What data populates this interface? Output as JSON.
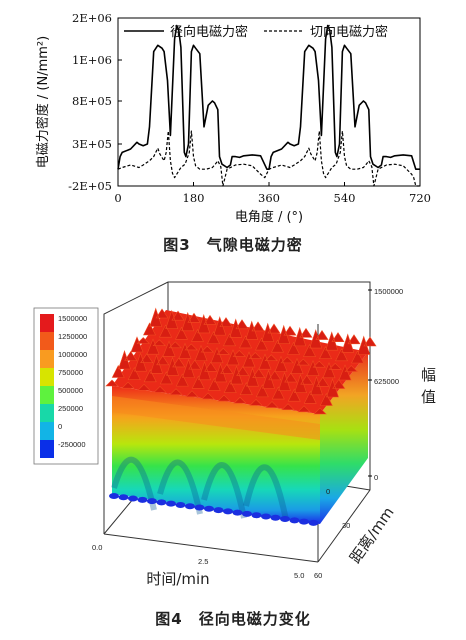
{
  "fig3": {
    "caption": "图3　气隙电磁力密",
    "chart_data": {
      "type": "line",
      "title": "",
      "xlabel": "电角度 / (°)",
      "ylabel": "电磁力密度 / (N/mm²)",
      "xlim": [
        0,
        720
      ],
      "ylim": [
        -200000,
        2000000
      ],
      "x_ticks": [
        "0",
        "180",
        "360",
        "540",
        "720"
      ],
      "y_ticks": [
        "-2E+05",
        "3E+05",
        "8E+05",
        "1E+06",
        "2E+06"
      ],
      "legend_position": "top",
      "grid": false,
      "series": [
        {
          "name": "径向电磁力密",
          "style": "solid",
          "x": [
            0,
            5,
            10,
            30,
            45,
            50,
            60,
            70,
            75,
            85,
            95,
            105,
            110,
            118,
            125,
            135,
            140,
            145,
            150,
            158,
            162,
            168,
            175,
            180,
            185,
            195,
            205,
            215,
            225,
            230,
            238,
            242,
            248,
            260,
            268,
            272,
            280,
            290,
            300,
            320,
            340,
            355,
            360,
            365,
            370,
            390,
            405,
            410,
            420,
            430,
            435,
            445,
            455,
            465,
            470,
            478,
            485,
            495,
            500,
            505,
            510,
            518,
            522,
            528,
            535,
            540,
            545,
            555,
            565,
            575,
            585,
            590,
            598,
            602,
            608,
            620,
            628,
            632,
            640,
            650,
            660,
            680,
            700,
            710,
            715,
            720
          ],
          "y": [
            0,
            150000,
            200000,
            240000,
            320000,
            300000,
            280000,
            300000,
            500000,
            1200000,
            1350000,
            1280000,
            1200000,
            900000,
            400000,
            1500000,
            1820000,
            1700000,
            1300000,
            200000,
            150000,
            300000,
            1200000,
            1350000,
            1280000,
            1150000,
            500000,
            750000,
            800000,
            780000,
            700000,
            150000,
            60000,
            20000,
            50000,
            150000,
            150000,
            140000,
            160000,
            170000,
            160000,
            0,
            0,
            150000,
            200000,
            240000,
            320000,
            300000,
            280000,
            300000,
            500000,
            1200000,
            1350000,
            1280000,
            1200000,
            900000,
            400000,
            1500000,
            1820000,
            1700000,
            1300000,
            200000,
            150000,
            300000,
            1200000,
            1350000,
            1280000,
            1150000,
            500000,
            750000,
            800000,
            780000,
            700000,
            150000,
            60000,
            20000,
            50000,
            150000,
            150000,
            140000,
            160000,
            170000,
            160000,
            0,
            0,
            0
          ]
        },
        {
          "name": "切向电磁力密",
          "style": "dashed",
          "x": [
            0,
            10,
            30,
            50,
            60,
            75,
            85,
            95,
            100,
            110,
            115,
            120,
            125,
            130,
            135,
            150,
            160,
            170,
            175,
            180,
            185,
            195,
            210,
            225,
            232,
            238,
            245,
            250,
            260,
            280,
            300,
            320,
            340,
            350,
            355,
            360,
            370,
            390,
            410,
            420,
            435,
            445,
            455,
            460,
            470,
            475,
            480,
            485,
            490,
            495,
            510,
            520,
            530,
            535,
            540,
            545,
            555,
            570,
            585,
            592,
            598,
            605,
            610,
            620,
            640,
            660,
            680,
            700,
            705,
            710,
            720
          ],
          "y": [
            0,
            20000,
            50000,
            20000,
            50000,
            100000,
            150000,
            250000,
            180000,
            100000,
            200000,
            450000,
            100000,
            -50000,
            -100000,
            20000,
            60000,
            200000,
            450000,
            150000,
            40000,
            0,
            0,
            20000,
            60000,
            100000,
            30000,
            -200000,
            0,
            50000,
            60000,
            40000,
            -60000,
            -100000,
            -50000,
            0,
            20000,
            50000,
            20000,
            50000,
            100000,
            150000,
            250000,
            180000,
            100000,
            200000,
            450000,
            100000,
            -50000,
            -100000,
            20000,
            60000,
            200000,
            450000,
            150000,
            40000,
            0,
            0,
            20000,
            60000,
            100000,
            30000,
            -200000,
            0,
            50000,
            60000,
            40000,
            -60000,
            -100000,
            -200000,
            -200000
          ]
        }
      ]
    }
  },
  "fig4": {
    "caption": "图4　径向电磁力变化",
    "chart_data": {
      "type": "heatmap",
      "title": "",
      "xlabel": "时间/min",
      "ylabel": "距离/mm",
      "zlabel": "幅值",
      "x_ticks": [
        "0.0",
        "2.5",
        "5.0"
      ],
      "y_ticks": [
        "0",
        "30",
        "60"
      ],
      "z_ticks": [
        "0",
        "625000",
        "1500000"
      ],
      "colorbar_labels": [
        "1500000",
        "1250000",
        "1000000",
        "750000",
        "500000",
        "250000",
        "0",
        "-250000"
      ],
      "colorbar_colors": [
        "#e41a1c",
        "#f25a1a",
        "#f99b20",
        "#d7e400",
        "#5ef23e",
        "#18d8a8",
        "#12b4e6",
        "#0a2fe8"
      ]
    }
  }
}
